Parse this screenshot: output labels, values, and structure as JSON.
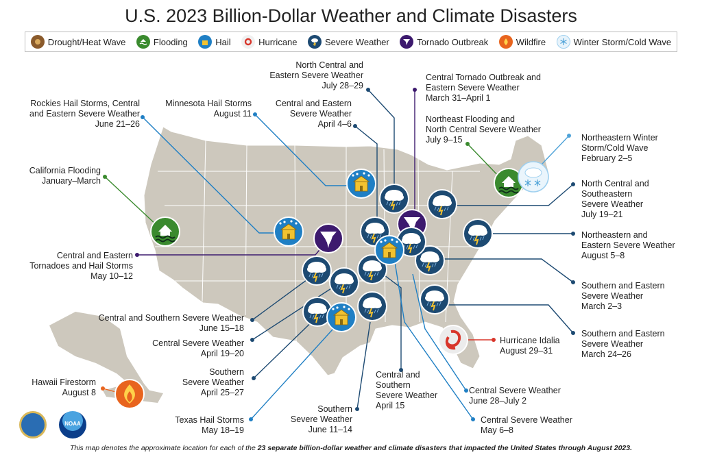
{
  "title": "U.S. 2023 Billion-Dollar Weather and Climate Disasters",
  "legend": [
    {
      "label": "Drought/Heat Wave",
      "icon": "drought-icon",
      "color": "#8a5a2b"
    },
    {
      "label": "Flooding",
      "icon": "flooding-icon",
      "color": "#3a8a2e"
    },
    {
      "label": "Hail",
      "icon": "hail-icon",
      "color": "#1f7fc4"
    },
    {
      "label": "Hurricane",
      "icon": "hurricane-icon",
      "color": "#d8352a"
    },
    {
      "label": "Severe Weather",
      "icon": "severe-weather-icon",
      "color": "#1d4a72"
    },
    {
      "label": "Tornado Outbreak",
      "icon": "tornado-icon",
      "color": "#3d1a6e"
    },
    {
      "label": "Wildfire",
      "icon": "wildfire-icon",
      "color": "#e8641e"
    },
    {
      "label": "Winter Storm/Cold Wave",
      "icon": "winter-storm-icon",
      "color": "#9fd0ef"
    }
  ],
  "events": [
    {
      "name": "North Central and\nEastern Severe Weather",
      "date": "July 28–29"
    },
    {
      "name": "Central Tornado Outbreak and\nEastern Severe Weather",
      "date": "March 31–April 1"
    },
    {
      "name": "Rockies Hail Storms, Central\nand Eastern Severe Weather",
      "date": "June 21–26"
    },
    {
      "name": "Minnesota Hail Storms",
      "date": "August 11"
    },
    {
      "name": "Central and Eastern\nSevere Weather",
      "date": "April 4–6"
    },
    {
      "name": "Northeast Flooding and\nNorth Central Severe Weather",
      "date": "July 9–15"
    },
    {
      "name": "Northeastern Winter\nStorm/Cold Wave",
      "date": "February 2–5"
    },
    {
      "name": "California Flooding",
      "date": "January–March"
    },
    {
      "name": "North Central and\nSoutheastern\nSevere Weather",
      "date": "July 19–21"
    },
    {
      "name": "Northeastern and\nEastern Severe Weather",
      "date": "August 5–8"
    },
    {
      "name": "Central and Eastern\nTornadoes and Hail Storms",
      "date": "May 10–12"
    },
    {
      "name": "Southern and Eastern\nSevere Weather",
      "date": "March 2–3"
    },
    {
      "name": "Central and Southern Severe Weather",
      "date": "June 15–18"
    },
    {
      "name": "Central Severe Weather",
      "date": "April 19–20"
    },
    {
      "name": "Southern and Eastern\nSevere Weather",
      "date": "March 24–26"
    },
    {
      "name": "Hurricane Idalia",
      "date": "August 29–31"
    },
    {
      "name": "Southern\nSevere Weather",
      "date": "April 25–27"
    },
    {
      "name": "Central and\nSouthern\nSevere Weather",
      "date": "April 15"
    },
    {
      "name": "Hawaii Firestorm",
      "date": "August 8"
    },
    {
      "name": "Central Severe Weather",
      "date": "June 28–July 2"
    },
    {
      "name": "Texas Hail Storms",
      "date": "May 18–19"
    },
    {
      "name": "Southern\nSevere Weather",
      "date": "June 11–14"
    },
    {
      "name": "Central Severe Weather",
      "date": "May 6–8"
    }
  ],
  "footnote": {
    "prefix": "This map denotes the approximate location for each of the ",
    "bold": "23 separate billion-dollar weather and climate disasters that impacted the United States through August 2023.",
    "suffix": ""
  },
  "logos": {
    "left": "Department of Commerce seal",
    "right": "NOAA"
  }
}
